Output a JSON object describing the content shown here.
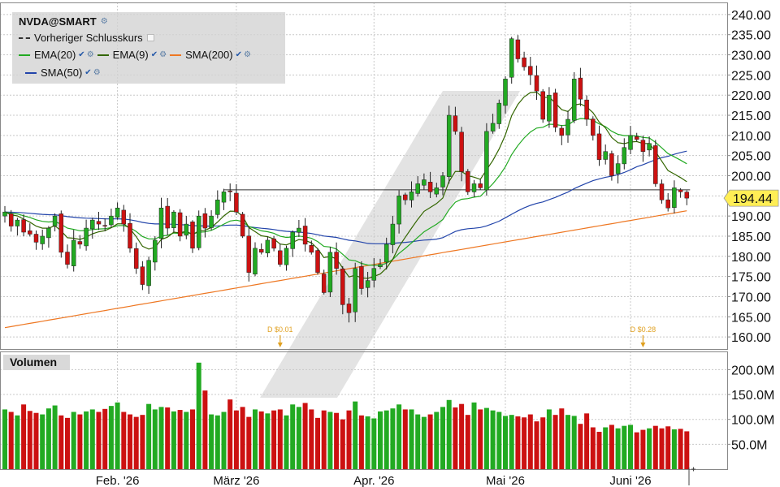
{
  "legend": {
    "title": "NVDA@SMART",
    "items": [
      {
        "label": "Vorheriger Schlusskurs",
        "color": "#333333",
        "dash": true
      },
      {
        "label": "EMA(20)",
        "color": "#22aa22"
      },
      {
        "label": "EMA(9)",
        "color": "#336600"
      },
      {
        "label": "SMA(200)",
        "color": "#ee7722"
      },
      {
        "label": "SMA(50)",
        "color": "#2244aa"
      }
    ]
  },
  "volume_title": "Volumen",
  "colors": {
    "up": "#22aa22",
    "down": "#cc1111",
    "grid": "#c8c8c8",
    "price_badge": "#ffee55"
  },
  "chart_data": {
    "type": "candlestick",
    "price_axis": {
      "min": 157,
      "max": 243,
      "ticks": [
        "240.00",
        "235.00",
        "230.00",
        "225.00",
        "220.00",
        "215.00",
        "210.00",
        "205.00",
        "200.00",
        "195.00",
        "190.00",
        "185.00",
        "180.00",
        "175.00",
        "170.00",
        "165.00",
        "160.00"
      ]
    },
    "volume_axis": {
      "min": 0,
      "max": 230,
      "ticks": [
        "200.0M",
        "150.0M",
        "100.0M",
        "50.0M"
      ],
      "tick_values": [
        200,
        150,
        100,
        50
      ]
    },
    "x_ticks": [
      {
        "label": "Feb. '26",
        "index": 18
      },
      {
        "label": "März '26",
        "index": 37
      },
      {
        "label": "Apr. '26",
        "index": 59
      },
      {
        "label": "Mai '26",
        "index": 80
      },
      {
        "label": "Juni '26",
        "index": 100
      }
    ],
    "last_price": "194.44",
    "previous_close": 196.5,
    "previous_close_from_index": 35,
    "dividends": [
      {
        "label": "D $0.01",
        "index": 44
      },
      {
        "label": "D $0.28",
        "index": 102
      }
    ],
    "closes": [
      191,
      187.5,
      189,
      186,
      185.5,
      183.5,
      185,
      187,
      190,
      181,
      178,
      184,
      183,
      187,
      189,
      188,
      187.5,
      190,
      192,
      188,
      182,
      177,
      173,
      179,
      184,
      192,
      187,
      191,
      185,
      188,
      182,
      190,
      187,
      190,
      194,
      196,
      196,
      191,
      185,
      176,
      182,
      181,
      184,
      182,
      178,
      182,
      186,
      187,
      183,
      181,
      176,
      171,
      181,
      177,
      168,
      166,
      177,
      172,
      174,
      177,
      178,
      183,
      188,
      195,
      194,
      196,
      198,
      199,
      196,
      197,
      200,
      215,
      211,
      201,
      196,
      198,
      197,
      211,
      213,
      218,
      224,
      234,
      229,
      227,
      225,
      221,
      214,
      220,
      212,
      210,
      214,
      224,
      219,
      214,
      210,
      204,
      206,
      200,
      203,
      207,
      210,
      209,
      206,
      208,
      198,
      194,
      192,
      197,
      196,
      194.44
    ],
    "volumes": [
      120,
      115,
      108,
      130,
      117,
      113,
      110,
      122,
      128,
      108,
      103,
      115,
      110,
      116,
      120,
      115,
      121,
      127,
      134,
      115,
      110,
      105,
      109,
      131,
      120,
      125,
      124,
      116,
      119,
      115,
      120,
      214,
      158,
      110,
      108,
      115,
      140,
      118,
      125,
      105,
      120,
      116,
      112,
      118,
      120,
      108,
      130,
      125,
      133,
      120,
      103,
      118,
      115,
      113,
      100,
      118,
      136,
      108,
      106,
      102,
      116,
      118,
      122,
      130,
      120,
      120,
      110,
      105,
      110,
      115,
      125,
      139,
      124,
      131,
      109,
      134,
      120,
      123,
      118,
      115,
      107,
      109,
      106,
      104,
      110,
      96,
      104,
      120,
      109,
      122,
      109,
      107,
      91,
      112,
      84,
      75,
      84,
      89,
      82,
      87,
      89,
      74,
      79,
      82,
      87,
      82,
      86,
      80,
      81,
      76
    ]
  }
}
